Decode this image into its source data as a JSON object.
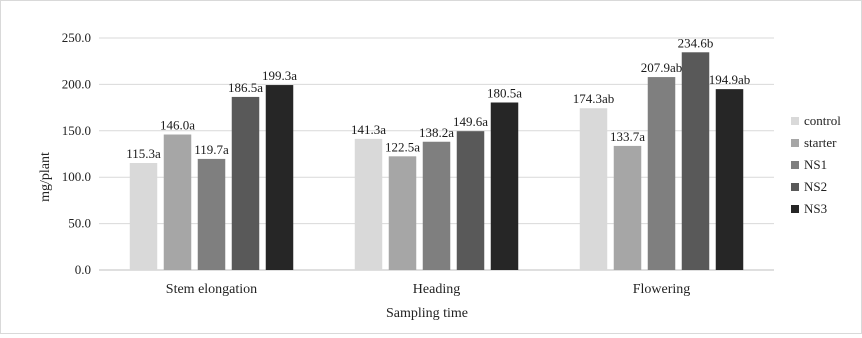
{
  "chart_data": {
    "type": "bar",
    "title": "",
    "xlabel": "Sampling time",
    "ylabel": "mg/plant",
    "ylim": [
      0,
      250
    ],
    "yticks": [
      0,
      50,
      100,
      150,
      200,
      250
    ],
    "ytick_labels": [
      "0.0",
      "50.0",
      "100.0",
      "150.0",
      "200.0",
      "250.0"
    ],
    "grid": true,
    "legend_position": "right",
    "categories": [
      "Stem elongation",
      "Heading",
      "Flowering"
    ],
    "series": [
      {
        "name": "control",
        "color": "#d9d9d9",
        "values": [
          115.3,
          141.3,
          174.3
        ],
        "labels": [
          "115.3a",
          "141.3a",
          "174.3ab"
        ]
      },
      {
        "name": "starter",
        "color": "#a6a6a6",
        "values": [
          146.0,
          122.5,
          133.7
        ],
        "labels": [
          "146.0a",
          "122.5a",
          "133.7a"
        ]
      },
      {
        "name": "NS1",
        "color": "#7f7f7f",
        "values": [
          119.7,
          138.2,
          207.9
        ],
        "labels": [
          "119.7a",
          "138.2a",
          "207.9ab"
        ]
      },
      {
        "name": "NS2",
        "color": "#595959",
        "values": [
          186.5,
          149.6,
          234.6
        ],
        "labels": [
          "186.5a",
          "149.6a",
          "234.6b"
        ]
      },
      {
        "name": "NS3",
        "color": "#262626",
        "values": [
          199.3,
          180.5,
          194.9
        ],
        "labels": [
          "199.3a",
          "180.5a",
          "194.9ab"
        ]
      }
    ]
  }
}
